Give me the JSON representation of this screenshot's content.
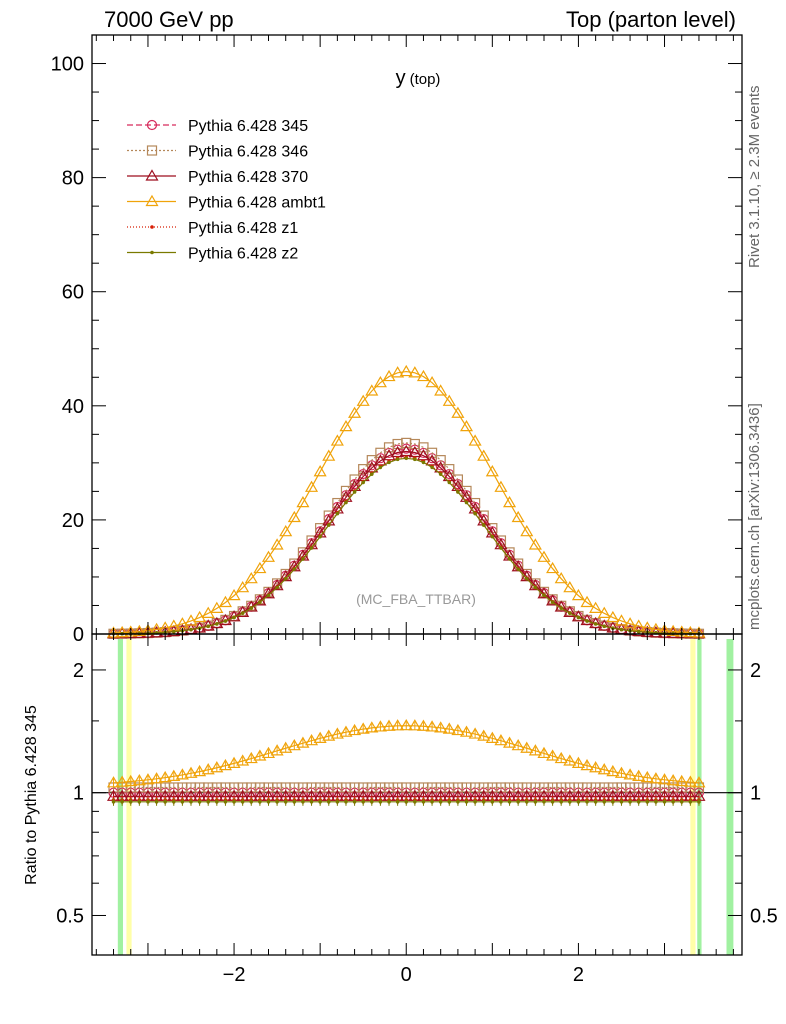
{
  "header": {
    "left": "7000 GeV pp",
    "right": "Top (parton level)"
  },
  "side_labels": {
    "rivet": "Rivet 3.1.10, ≥ 2.3M events",
    "mcplots": "mcplots.cern.ch [arXiv:1306.3436]"
  },
  "chart_data": [
    {
      "type": "line",
      "panel": "main",
      "title": "y",
      "title_sub": "(top)",
      "watermark": "(MC_FBA_TTBAR)",
      "ylim": [
        0,
        105
      ],
      "xlim": [
        -3.65,
        3.9
      ],
      "yticks": [
        0,
        20,
        40,
        60,
        80,
        100
      ],
      "ytick_labels": [
        "0",
        "20",
        "40",
        "60",
        "80",
        "100"
      ],
      "legend_position": "top-left",
      "x": [
        -3.4,
        -3.3,
        -3.2,
        -3.1,
        -3.0,
        -2.9,
        -2.8,
        -2.7,
        -2.6,
        -2.5,
        -2.4,
        -2.3,
        -2.2,
        -2.1,
        -2.0,
        -1.9,
        -1.8,
        -1.7,
        -1.6,
        -1.5,
        -1.4,
        -1.3,
        -1.2,
        -1.1,
        -1.0,
        -0.9,
        -0.8,
        -0.7,
        -0.6,
        -0.5,
        -0.4,
        -0.3,
        -0.2,
        -0.1,
        0.0,
        0.1,
        0.2,
        0.3,
        0.4,
        0.5,
        0.6,
        0.7,
        0.8,
        0.9,
        1.0,
        1.1,
        1.2,
        1.3,
        1.4,
        1.5,
        1.6,
        1.7,
        1.8,
        1.9,
        2.0,
        2.1,
        2.2,
        2.3,
        2.4,
        2.5,
        2.6,
        2.7,
        2.8,
        2.9,
        3.0,
        3.1,
        3.2,
        3.3,
        3.4
      ],
      "series": [
        {
          "name": "Pythia 6.428 345",
          "color": "#d62b5c",
          "marker": "circle",
          "dash": "6,3",
          "peak": 32.5,
          "sigma": 0.92,
          "ratio_profile": "flat",
          "ratio_level": 1.0
        },
        {
          "name": "Pythia 6.428 346",
          "color": "#b5885a",
          "marker": "square",
          "dash": "2,2",
          "peak": 33.5,
          "sigma": 0.92,
          "ratio_profile": "flat",
          "ratio_level": 1.03
        },
        {
          "name": "Pythia 6.428 370",
          "color": "#9e0f1f",
          "marker": "triangle",
          "dash": "",
          "peak": 32.0,
          "sigma": 0.92,
          "ratio_profile": "flat",
          "ratio_level": 0.98
        },
        {
          "name": "Pythia 6.428 ambt1",
          "color": "#f0a30a",
          "marker": "triangle",
          "dash": "",
          "peak": 46.0,
          "sigma": 1.02,
          "ratio_profile": "hump",
          "ratio_level": 1.46
        },
        {
          "name": "Pythia 6.428 z1",
          "color": "#d81e05",
          "marker": "dot",
          "dash": "1,2",
          "peak": 31.0,
          "sigma": 0.92,
          "ratio_profile": "flat",
          "ratio_level": 0.96
        },
        {
          "name": "Pythia 6.428 z2",
          "color": "#7a7a00",
          "marker": "dot",
          "dash": "",
          "peak": 30.8,
          "sigma": 0.92,
          "ratio_profile": "flat",
          "ratio_level": 0.95
        }
      ]
    },
    {
      "type": "line",
      "panel": "ratio",
      "ylabel": "Ratio to Pythia 6.428 345",
      "yscale": "log",
      "ylim": [
        0.4,
        2.45
      ],
      "xlim": [
        -3.65,
        3.9
      ],
      "yticks": [
        0.5,
        1,
        2
      ],
      "ytick_labels": [
        "0.5",
        "1",
        "2"
      ],
      "xticks": [
        -2,
        0,
        2
      ],
      "xtick_labels": [
        "−2",
        "0",
        "2"
      ],
      "reference_line": 1.0
    }
  ]
}
